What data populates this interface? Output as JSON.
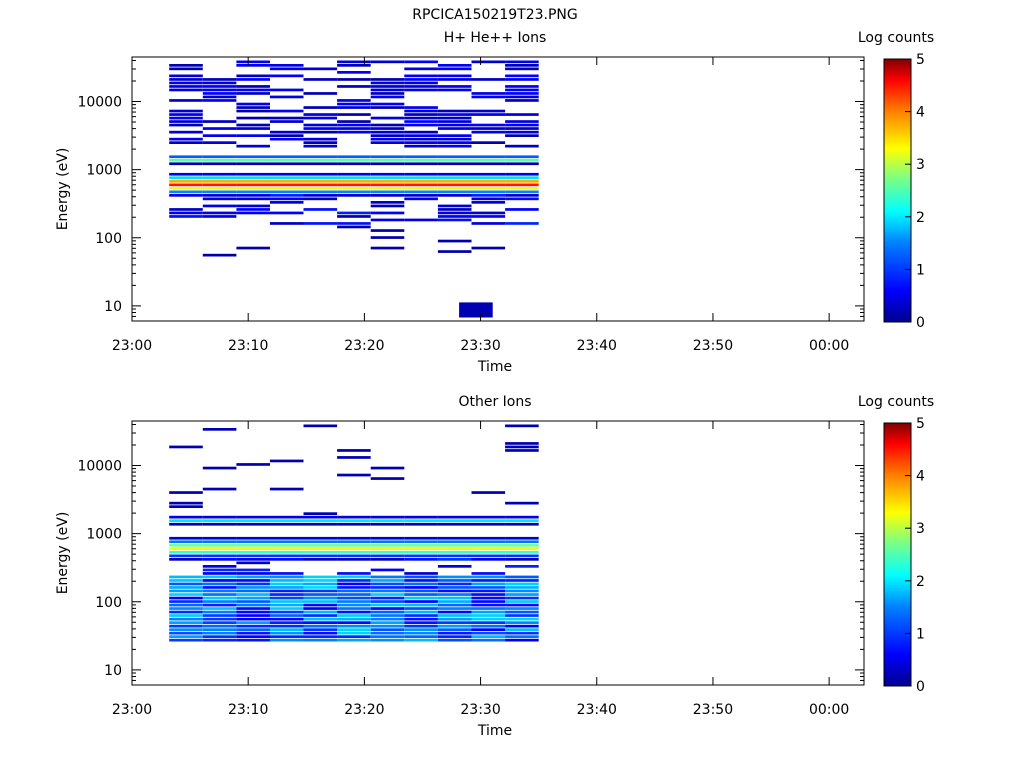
{
  "figure": {
    "title": "RPCICA150219T23.PNG"
  },
  "colors": {
    "colormap": [
      "#00008f",
      "#0000ff",
      "#0080ff",
      "#00ffff",
      "#80ff80",
      "#ffff00",
      "#ff8000",
      "#ff0000",
      "#800000"
    ],
    "axis": "#000000",
    "background": "#ffffff"
  },
  "chart_data": [
    {
      "type": "heatmap",
      "title": "H+ He++ Ions",
      "xlabel": "Time",
      "ylabel": "Energy (eV)",
      "x_ticks": [
        "23:00",
        "23:10",
        "23:20",
        "23:30",
        "23:40",
        "23:50",
        "00:00"
      ],
      "y_ticks": [
        "10",
        "100",
        "1000",
        "10000"
      ],
      "y_scale": "log",
      "ylim": [
        6,
        45000
      ],
      "xlim_minutes": [
        0,
        63
      ],
      "colorbar": {
        "label": "Log counts",
        "ticks": [
          "0",
          "1",
          "2",
          "3",
          "4",
          "5"
        ],
        "range": [
          0,
          5
        ]
      },
      "data_time_range_minutes": [
        3.2,
        35.0
      ],
      "columns": 11,
      "dominant_energy_eV": 600,
      "peak_log_counts": 4.3,
      "secondary_band_eV": 1400,
      "secondary_band_log_counts": 2.6,
      "low_energy_hits": [
        {
          "time_min": 29.6,
          "energy_eV": 9,
          "log_counts": 0.2
        }
      ]
    },
    {
      "type": "heatmap",
      "title": "Other Ions",
      "xlabel": "Time",
      "ylabel": "Energy (eV)",
      "x_ticks": [
        "23:00",
        "23:10",
        "23:20",
        "23:30",
        "23:40",
        "23:50",
        "00:00"
      ],
      "y_ticks": [
        "10",
        "100",
        "1000",
        "10000"
      ],
      "y_scale": "log",
      "ylim": [
        6,
        45000
      ],
      "xlim_minutes": [
        0,
        63
      ],
      "colorbar": {
        "label": "Log counts",
        "ticks": [
          "0",
          "1",
          "2",
          "3",
          "4",
          "5"
        ],
        "range": [
          0,
          5
        ]
      },
      "data_time_range_minutes": [
        3.2,
        35.0
      ],
      "columns": 11,
      "dominant_energy_eV": 600,
      "peak_log_counts": 3.0,
      "secondary_band_eV": 1550,
      "secondary_band_log_counts": 1.8,
      "low_energy_band_eV": [
        25,
        250
      ],
      "low_energy_band_log_counts": 1.7
    }
  ]
}
